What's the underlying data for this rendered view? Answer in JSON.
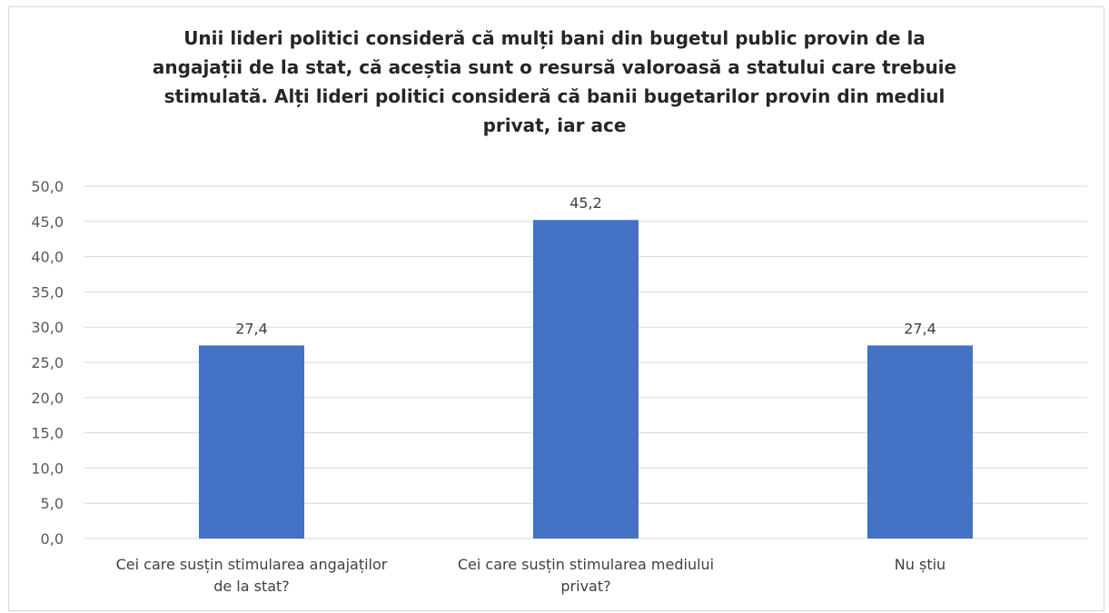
{
  "chart_data": {
    "type": "bar",
    "title": "Unii lideri politici consideră că mulți bani din bugetul public provin de la angajații de la stat, că aceștia sunt o resursă valoroasă a statului care trebuie stimulată. Alți lideri politici consideră că banii bugetarilor provin din mediul privat, iar ace",
    "categories": [
      [
        "Cei care susțin stimularea angajaților",
        "de la stat?"
      ],
      [
        "Cei care susțin stimularea mediului",
        "privat?"
      ],
      [
        "Nu știu"
      ]
    ],
    "values": [
      27.4,
      45.2,
      27.4
    ],
    "value_labels": [
      "27,4",
      "45,2",
      "27,4"
    ],
    "ylim": [
      0,
      50
    ],
    "yticks": [
      "0,0",
      "5,0",
      "10,0",
      "15,0",
      "20,0",
      "25,0",
      "30,0",
      "35,0",
      "40,0",
      "45,0",
      "50,0"
    ],
    "ytick_values": [
      0,
      5,
      10,
      15,
      20,
      25,
      30,
      35,
      40,
      45,
      50
    ],
    "grid": true,
    "legend": "none",
    "bar_color": "#4472c4",
    "grid_color": "#d9d9d9"
  }
}
